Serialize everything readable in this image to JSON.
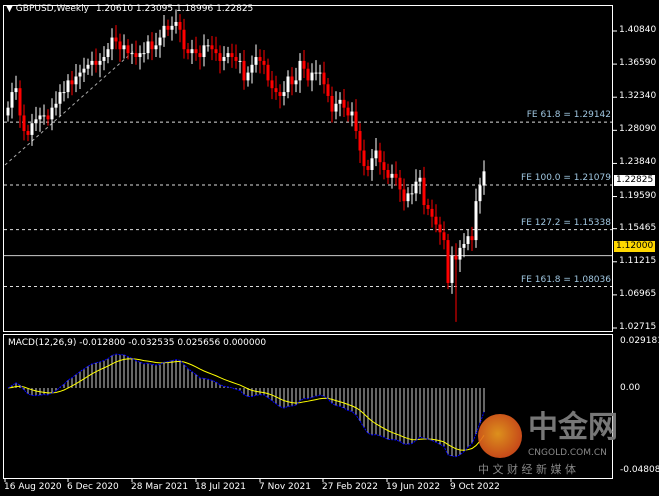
{
  "header": {
    "symbol": "GBPUSD,Weekly",
    "ohlc": "1.20610 1.23095 1.18996 1.22825"
  },
  "price_axis": [
    "1.40840",
    "1.36590",
    "1.32340",
    "1.28090",
    "1.23840",
    "1.19590",
    "1.15465",
    "1.11215",
    "1.06965",
    "1.02715"
  ],
  "current_price": "1.22825",
  "level_line": {
    "label": "1.12000",
    "value": 1.12,
    "color": "#ffd700"
  },
  "fib_levels": [
    {
      "label": "FE 61.8 = 1.29142",
      "value": 1.29142
    },
    {
      "label": "FE 100.0 = 1.21079",
      "value": 1.21079
    },
    {
      "label": "FE 127.2 = 1.15338",
      "value": 1.15338
    },
    {
      "label": "FE 161.8 = 1.08036",
      "value": 1.08036
    }
  ],
  "macd": {
    "label": "MACD(12,26,9) -0.012800 -0.032535 0.025656 0.000000",
    "axis": [
      "0.029181",
      "0.00",
      "-0.048085"
    ]
  },
  "date_axis": [
    "16 Aug 2020",
    "6 Dec 2020",
    "28 Mar 2021",
    "18 Jul 2021",
    "7 Nov 2021",
    "27 Feb 2022",
    "19 Jun 2022",
    "9 Oct 2022"
  ],
  "watermark": {
    "name": "中金网",
    "url": "CNGOLD.COM.CN",
    "tagline": "中 文 财 经 新 媒 体"
  },
  "colors": {
    "bull": "#ffffff",
    "bear": "#ff0000",
    "signal": "#ffff00",
    "macd_line": "#0000ff"
  },
  "chart_data": {
    "type": "candlestick",
    "period": "Weekly",
    "ylim": [
      1.02715,
      1.4084
    ],
    "closes": [
      1.31,
      1.33,
      1.335,
      1.3,
      1.28,
      1.275,
      1.29,
      1.295,
      1.3,
      1.3,
      1.295,
      1.31,
      1.315,
      1.33,
      1.33,
      1.345,
      1.34,
      1.35,
      1.355,
      1.36,
      1.365,
      1.37,
      1.365,
      1.37,
      1.375,
      1.385,
      1.4,
      1.395,
      1.385,
      1.39,
      1.38,
      1.38,
      1.375,
      1.38,
      1.38,
      1.395,
      1.385,
      1.39,
      1.4,
      1.415,
      1.41,
      1.415,
      1.42,
      1.41,
      1.385,
      1.38,
      1.385,
      1.38,
      1.375,
      1.39,
      1.39,
      1.385,
      1.38,
      1.37,
      1.375,
      1.38,
      1.375,
      1.37,
      1.37,
      1.345,
      1.355,
      1.365,
      1.375,
      1.37,
      1.365,
      1.345,
      1.335,
      1.33,
      1.325,
      1.33,
      1.35,
      1.34,
      1.345,
      1.37,
      1.36,
      1.345,
      1.355,
      1.355,
      1.355,
      1.34,
      1.325,
      1.305,
      1.315,
      1.32,
      1.31,
      1.3,
      1.305,
      1.28,
      1.255,
      1.235,
      1.23,
      1.245,
      1.255,
      1.24,
      1.23,
      1.22,
      1.225,
      1.22,
      1.205,
      1.19,
      1.2,
      1.2,
      1.215,
      1.22,
      1.185,
      1.18,
      1.17,
      1.16,
      1.15,
      1.14,
      1.085,
      1.12,
      1.115,
      1.13,
      1.135,
      1.145,
      1.14,
      1.19,
      1.21,
      1.22825
    ]
  }
}
